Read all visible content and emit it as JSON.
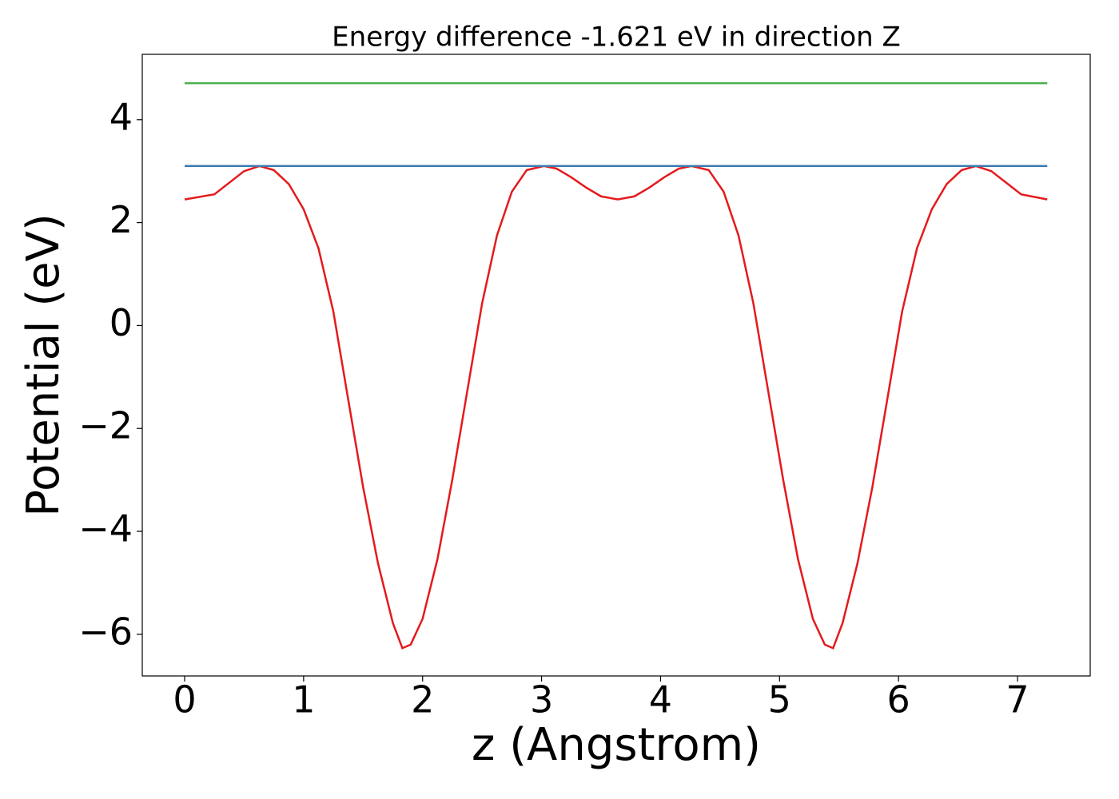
{
  "chart_data": {
    "type": "line",
    "title": "Energy difference -1.621 eV in direction Z",
    "xlabel": "z (Angstrom)",
    "ylabel": "Potential (eV)",
    "xlim": [
      -0.356,
      7.611
    ],
    "ylim": [
      -6.81,
      5.27
    ],
    "xticks": [
      0,
      1,
      2,
      3,
      4,
      5,
      6,
      7
    ],
    "yticks": [
      {
        "value": -6,
        "label": "−6"
      },
      {
        "value": -4,
        "label": "−4"
      },
      {
        "value": -2,
        "label": "−2"
      },
      0,
      2,
      4
    ],
    "series": [
      {
        "color": "#e41a1c",
        "x": [
          0,
          0.25,
          0.5,
          0.63,
          0.75,
          0.875,
          1,
          1.125,
          1.25,
          1.375,
          1.5,
          1.625,
          1.75,
          1.83,
          1.9,
          2,
          2.125,
          2.25,
          2.375,
          2.5,
          2.625,
          2.75,
          2.875,
          3.02,
          3.125,
          3.25,
          3.375,
          3.5,
          3.64,
          3.78,
          3.905,
          4.03,
          4.155,
          4.26,
          4.405,
          4.53,
          4.655,
          4.78,
          4.905,
          5.03,
          5.155,
          5.28,
          5.38,
          5.45,
          5.53,
          5.655,
          5.78,
          5.905,
          6.03,
          6.155,
          6.28,
          6.405,
          6.53,
          6.65,
          6.78,
          7.03,
          7.25
        ],
        "values": [
          2.45,
          2.55,
          3.0,
          3.1,
          3.02,
          2.75,
          2.26,
          1.5,
          0.27,
          -1.44,
          -3.14,
          -4.62,
          -5.78,
          -6.27,
          -6.2,
          -5.7,
          -4.54,
          -2.99,
          -1.28,
          0.43,
          1.75,
          2.6,
          3.02,
          3.1,
          3.05,
          2.88,
          2.68,
          2.51,
          2.45,
          2.51,
          2.68,
          2.88,
          3.05,
          3.1,
          3.02,
          2.6,
          1.75,
          0.43,
          -1.28,
          -2.99,
          -4.54,
          -5.7,
          -6.2,
          -6.27,
          -5.78,
          -4.62,
          -3.14,
          -1.44,
          0.27,
          1.5,
          2.26,
          2.75,
          3.02,
          3.1,
          3.0,
          2.55,
          2.45
        ]
      },
      {
        "color": "#3a7bb0",
        "x": [
          0,
          7.25
        ],
        "values": [
          3.1,
          3.1
        ]
      },
      {
        "color": "#4daf4a",
        "x": [
          0,
          7.25
        ],
        "values": [
          4.71,
          4.71
        ]
      }
    ]
  }
}
